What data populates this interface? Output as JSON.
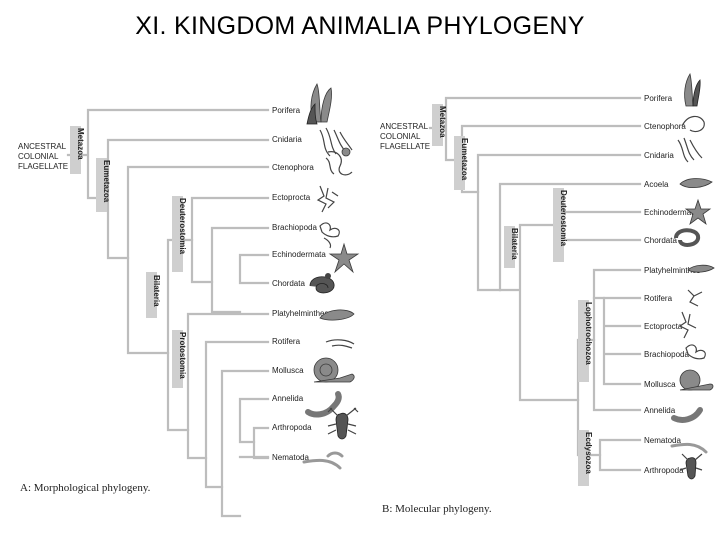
{
  "title": "XI.  KINGDOM ANIMALIA PHYLOGENY",
  "panels": {
    "morphological": {
      "caption": "A: Morphological phylogeny.",
      "root": [
        "ANCESTRAL",
        "COLONIAL",
        "FLAGELLATE"
      ],
      "taxa": [
        "Porifera",
        "Cnidaria",
        "Ctenophora",
        "Ectoprocta",
        "Brachiopoda",
        "Echinodermata",
        "Chordata",
        "Platyhelminthes",
        "Rotifera",
        "Mollusca",
        "Annelida",
        "Arthropoda",
        "Nematoda"
      ],
      "clades": [
        "Metazoa",
        "Eumetazoa",
        "Bilateria",
        "Deuterostomia",
        "Protostomia"
      ]
    },
    "molecular": {
      "caption": "B: Molecular phylogeny.",
      "root": [
        "ANCESTRAL",
        "COLONIAL",
        "FLAGELLATE"
      ],
      "taxa": [
        "Porifera",
        "Ctenophora",
        "Cnidaria",
        "Acoela",
        "Echinodermata",
        "Chordata",
        "Platyhelminthes",
        "Rotifera",
        "Ectoprocta",
        "Brachiopoda",
        "Mollusca",
        "Annelida",
        "Nematoda",
        "Arthropoda"
      ],
      "clades": [
        "Metazoa",
        "Eumetazoa",
        "Bilateria",
        "Deuterostomia",
        "Lophotrochozoa",
        "Ecdysozoa"
      ]
    }
  },
  "icons": [
    "sponge-icon",
    "jellyfish-icon",
    "comb-jelly-icon",
    "bryozoan-icon",
    "lamp-shell-icon",
    "sea-star-icon",
    "snake-icon",
    "flatworm-icon",
    "rotifer-icon",
    "snail-icon",
    "worm-icon",
    "lobster-icon",
    "roundworm-icon"
  ]
}
